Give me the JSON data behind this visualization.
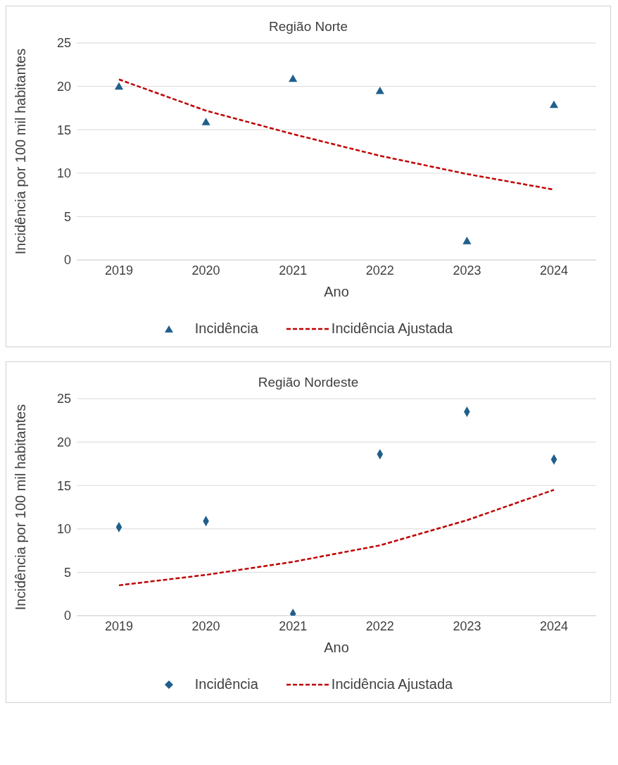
{
  "chart_data": [
    {
      "type": "scatter",
      "title": "Região Norte",
      "xlabel": "Ano",
      "ylabel": "Incidência por 100 mil habitantes",
      "categories": [
        "2019",
        "2020",
        "2021",
        "2022",
        "2023",
        "2024"
      ],
      "ylim": [
        0,
        25
      ],
      "yticks": [
        0,
        5,
        10,
        15,
        20,
        25
      ],
      "grid": "y",
      "legend": "bottom",
      "series": [
        {
          "name": "Incidência",
          "marker": "triangle",
          "color": "#1f5f8b",
          "values": [
            19.9,
            15.8,
            20.8,
            19.4,
            2.1,
            17.8
          ]
        },
        {
          "name": "Incidência Ajustada",
          "type": "line",
          "marker": "none",
          "line_style": "dashed",
          "color": "#c00000",
          "values": [
            20.8,
            17.2,
            14.5,
            12.0,
            9.9,
            8.1
          ]
        }
      ]
    },
    {
      "type": "scatter",
      "title": "Região Nordeste",
      "xlabel": "Ano",
      "ylabel": "Incidência por 100 mil habitantes",
      "categories": [
        "2019",
        "2020",
        "2021",
        "2022",
        "2023",
        "2024"
      ],
      "ylim": [
        0,
        25
      ],
      "yticks": [
        0,
        5,
        10,
        15,
        20,
        25
      ],
      "grid": "y",
      "legend": "bottom",
      "series": [
        {
          "name": "Incidência",
          "marker": "diamond",
          "color": "#1f5f8b",
          "values": [
            10.2,
            10.9,
            0.2,
            18.6,
            23.5,
            18.0
          ]
        },
        {
          "name": "Incidência Ajustada",
          "type": "line",
          "marker": "none",
          "line_style": "dashed",
          "color": "#c00000",
          "values": [
            3.5,
            4.7,
            6.2,
            8.1,
            11.0,
            14.5
          ]
        }
      ]
    }
  ]
}
